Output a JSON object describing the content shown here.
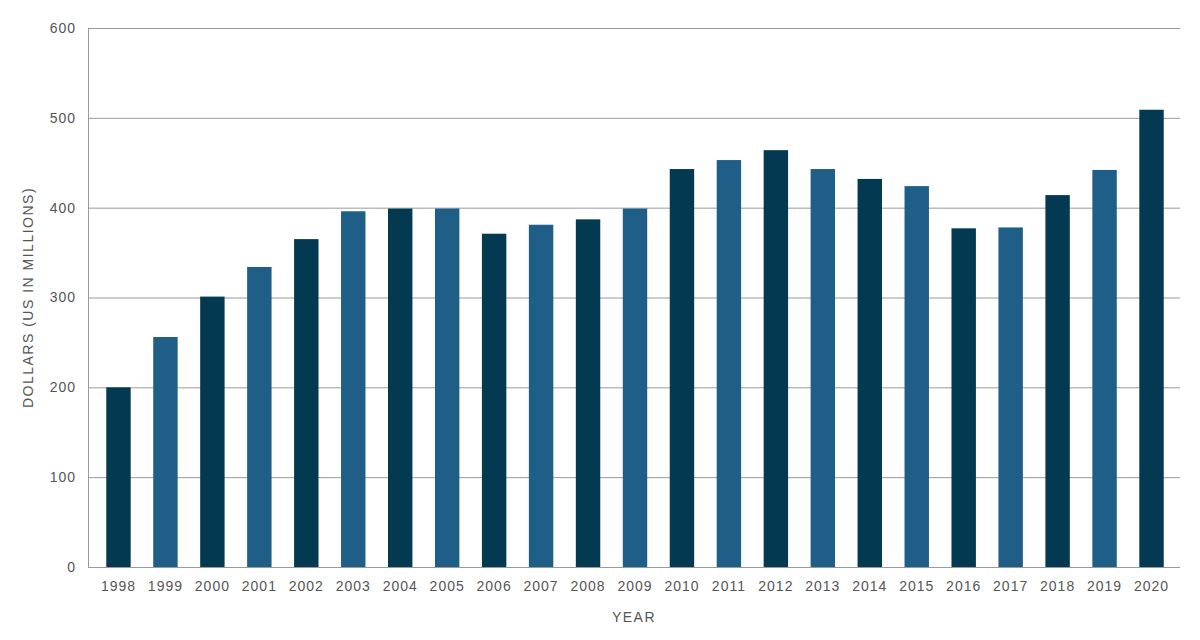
{
  "chart_data": {
    "type": "bar",
    "x_label": "YEAR",
    "y_label": "DOLLARS (US IN MILLIONS)",
    "categories": [
      "1998",
      "1999",
      "2000",
      "2001",
      "2002",
      "2003",
      "2004",
      "2005",
      "2006",
      "2007",
      "2008",
      "2009",
      "2010",
      "2011",
      "2012",
      "2013",
      "2014",
      "2015",
      "2016",
      "2017",
      "2018",
      "2019",
      "2020"
    ],
    "values": [
      200,
      256,
      301,
      334,
      365,
      396,
      399,
      399,
      371,
      381,
      387,
      399,
      443,
      453,
      464,
      443,
      432,
      424,
      377,
      378,
      414,
      442,
      509
    ],
    "colors": [
      "#033a51",
      "#1e5e87",
      "#033a51",
      "#1e5e87",
      "#033a51",
      "#1e5e87",
      "#033a51",
      "#1e5e87",
      "#033a51",
      "#1e5e87",
      "#033a51",
      "#1e5e87",
      "#033a51",
      "#1e5e87",
      "#033a51",
      "#1e5e87",
      "#033a51",
      "#1e5e87",
      "#033a51",
      "#1e5e87",
      "#033a51",
      "#1e5e87",
      "#033a51"
    ],
    "ylim": [
      0,
      600
    ],
    "yticks": [
      0,
      100,
      200,
      300,
      400,
      500,
      600
    ],
    "grid": true
  }
}
